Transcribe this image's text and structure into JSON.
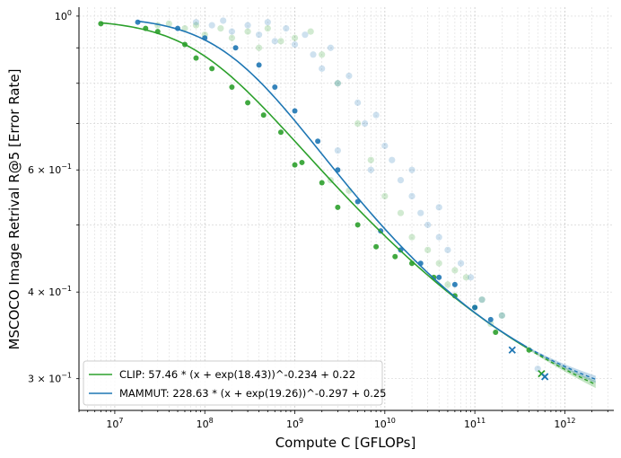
{
  "chart_data": {
    "type": "scatter",
    "xlabel": "Compute C [GFLOPs]",
    "ylabel": "MSCOCO Image Retrival R@5 [Error Rate]",
    "xscale": "log",
    "yscale": "log",
    "xlim": [
      4000000.0,
      3500000000000.0
    ],
    "ylim": [
      0.27,
      1.03
    ],
    "grid": true,
    "legend_position": "lower-left",
    "x_ticks": [
      {
        "value": 10000000.0,
        "base": "10",
        "exp": "7"
      },
      {
        "value": 100000000.0,
        "base": "10",
        "exp": "8"
      },
      {
        "value": 1000000000.0,
        "base": "10",
        "exp": "9"
      },
      {
        "value": 10000000000.0,
        "base": "10",
        "exp": "10"
      },
      {
        "value": 100000000000.0,
        "base": "10",
        "exp": "11"
      },
      {
        "value": 1000000000000.0,
        "base": "10",
        "exp": "12"
      }
    ],
    "y_ticks": [
      {
        "value": 1.0,
        "base": "10",
        "exp": "0"
      },
      {
        "value": 0.6,
        "base": "6 × 10",
        "exp": "−1"
      },
      {
        "value": 0.4,
        "base": "4 × 10",
        "exp": "−1"
      },
      {
        "value": 0.3,
        "base": "3 × 10",
        "exp": "−1"
      }
    ],
    "series": [
      {
        "name": "CLIP",
        "legend_label": "CLIP: 57.46 * (x + exp(18.43))^-0.234 + 0.22",
        "color": "#2ca02c",
        "fit": {
          "A": 57.46,
          "B": 18.43,
          "alpha": 0.234,
          "E": 0.22
        },
        "frontier_points": [
          {
            "x": 7000000.0,
            "y": 0.975
          },
          {
            "x": 22000000.0,
            "y": 0.96
          },
          {
            "x": 30000000.0,
            "y": 0.95
          },
          {
            "x": 60000000.0,
            "y": 0.91
          },
          {
            "x": 80000000.0,
            "y": 0.87
          },
          {
            "x": 120000000.0,
            "y": 0.84
          },
          {
            "x": 200000000.0,
            "y": 0.79
          },
          {
            "x": 300000000.0,
            "y": 0.75
          },
          {
            "x": 450000000.0,
            "y": 0.72
          },
          {
            "x": 700000000.0,
            "y": 0.68
          },
          {
            "x": 1000000000.0,
            "y": 0.61
          },
          {
            "x": 1200000000.0,
            "y": 0.615
          },
          {
            "x": 2000000000.0,
            "y": 0.575
          },
          {
            "x": 3000000000.0,
            "y": 0.53
          },
          {
            "x": 5000000000.0,
            "y": 0.5
          },
          {
            "x": 8000000000.0,
            "y": 0.465
          },
          {
            "x": 13000000000.0,
            "y": 0.45
          },
          {
            "x": 20000000000.0,
            "y": 0.44
          },
          {
            "x": 35000000000.0,
            "y": 0.42
          },
          {
            "x": 60000000000.0,
            "y": 0.395
          },
          {
            "x": 100000000000.0,
            "y": 0.38
          },
          {
            "x": 170000000000.0,
            "y": 0.35
          },
          {
            "x": 400000000000.0,
            "y": 0.33
          }
        ],
        "other_points": [
          {
            "x": 30000000.0,
            "y": 0.97
          },
          {
            "x": 40000000.0,
            "y": 0.975
          },
          {
            "x": 60000000.0,
            "y": 0.96
          },
          {
            "x": 80000000.0,
            "y": 0.97
          },
          {
            "x": 100000000.0,
            "y": 0.94
          },
          {
            "x": 150000000.0,
            "y": 0.96
          },
          {
            "x": 200000000.0,
            "y": 0.93
          },
          {
            "x": 300000000.0,
            "y": 0.95
          },
          {
            "x": 400000000.0,
            "y": 0.9
          },
          {
            "x": 500000000.0,
            "y": 0.96
          },
          {
            "x": 700000000.0,
            "y": 0.92
          },
          {
            "x": 1000000000.0,
            "y": 0.93
          },
          {
            "x": 1500000000.0,
            "y": 0.95
          },
          {
            "x": 2000000000.0,
            "y": 0.88
          },
          {
            "x": 3000000000.0,
            "y": 0.8
          },
          {
            "x": 5000000000.0,
            "y": 0.7
          },
          {
            "x": 7000000000.0,
            "y": 0.62
          },
          {
            "x": 10000000000.0,
            "y": 0.55
          },
          {
            "x": 15000000000.0,
            "y": 0.52
          },
          {
            "x": 20000000000.0,
            "y": 0.48
          },
          {
            "x": 30000000000.0,
            "y": 0.46
          },
          {
            "x": 40000000000.0,
            "y": 0.44
          },
          {
            "x": 60000000000.0,
            "y": 0.43
          },
          {
            "x": 80000000000.0,
            "y": 0.42
          },
          {
            "x": 120000000000.0,
            "y": 0.39
          },
          {
            "x": 200000000000.0,
            "y": 0.37
          },
          {
            "x": 2500000000.0,
            "y": 0.58
          },
          {
            "x": 4000000000.0,
            "y": 0.56
          },
          {
            "x": 150000000000.0,
            "y": 0.36
          },
          {
            "x": 50000000000.0,
            "y": 0.41
          }
        ],
        "test_points": [
          {
            "x": 550000000000.0,
            "y": 0.305
          }
        ]
      },
      {
        "name": "MAMMUT",
        "legend_label": "MAMMUT: 228.63 * (x + exp(19.26))^-0.297 + 0.25",
        "color": "#1f77b4",
        "fit": {
          "A": 228.63,
          "B": 19.26,
          "alpha": 0.297,
          "E": 0.25
        },
        "frontier_points": [
          {
            "x": 18000000.0,
            "y": 0.98
          },
          {
            "x": 50000000.0,
            "y": 0.96
          },
          {
            "x": 100000000.0,
            "y": 0.93
          },
          {
            "x": 220000000.0,
            "y": 0.9
          },
          {
            "x": 400000000.0,
            "y": 0.85
          },
          {
            "x": 600000000.0,
            "y": 0.79
          },
          {
            "x": 1000000000.0,
            "y": 0.73
          },
          {
            "x": 1800000000.0,
            "y": 0.66
          },
          {
            "x": 3000000000.0,
            "y": 0.6
          },
          {
            "x": 5000000000.0,
            "y": 0.54
          },
          {
            "x": 9000000000.0,
            "y": 0.49
          },
          {
            "x": 15000000000.0,
            "y": 0.46
          },
          {
            "x": 25000000000.0,
            "y": 0.44
          },
          {
            "x": 40000000000.0,
            "y": 0.42
          },
          {
            "x": 60000000000.0,
            "y": 0.41
          },
          {
            "x": 100000000000.0,
            "y": 0.38
          },
          {
            "x": 150000000000.0,
            "y": 0.365
          }
        ],
        "other_points": [
          {
            "x": 80000000.0,
            "y": 0.98
          },
          {
            "x": 120000000.0,
            "y": 0.97
          },
          {
            "x": 160000000.0,
            "y": 0.985
          },
          {
            "x": 200000000.0,
            "y": 0.95
          },
          {
            "x": 300000000.0,
            "y": 0.97
          },
          {
            "x": 400000000.0,
            "y": 0.94
          },
          {
            "x": 500000000.0,
            "y": 0.98
          },
          {
            "x": 600000000.0,
            "y": 0.92
          },
          {
            "x": 800000000.0,
            "y": 0.96
          },
          {
            "x": 1000000000.0,
            "y": 0.91
          },
          {
            "x": 1300000000.0,
            "y": 0.94
          },
          {
            "x": 1600000000.0,
            "y": 0.88
          },
          {
            "x": 2000000000.0,
            "y": 0.84
          },
          {
            "x": 2500000000.0,
            "y": 0.9
          },
          {
            "x": 3000000000.0,
            "y": 0.8
          },
          {
            "x": 4000000000.0,
            "y": 0.82
          },
          {
            "x": 5000000000.0,
            "y": 0.75
          },
          {
            "x": 6000000000.0,
            "y": 0.7
          },
          {
            "x": 8000000000.0,
            "y": 0.72
          },
          {
            "x": 10000000000.0,
            "y": 0.65
          },
          {
            "x": 12000000000.0,
            "y": 0.62
          },
          {
            "x": 15000000000.0,
            "y": 0.58
          },
          {
            "x": 20000000000.0,
            "y": 0.55
          },
          {
            "x": 25000000000.0,
            "y": 0.52
          },
          {
            "x": 30000000000.0,
            "y": 0.5
          },
          {
            "x": 40000000000.0,
            "y": 0.48
          },
          {
            "x": 50000000000.0,
            "y": 0.46
          },
          {
            "x": 70000000000.0,
            "y": 0.44
          },
          {
            "x": 90000000000.0,
            "y": 0.42
          },
          {
            "x": 120000000000.0,
            "y": 0.39
          },
          {
            "x": 200000000000.0,
            "y": 0.37
          },
          {
            "x": 500000000000.0,
            "y": 0.31
          },
          {
            "x": 40000000000.0,
            "y": 0.53
          },
          {
            "x": 20000000000.0,
            "y": 0.6
          },
          {
            "x": 7000000000.0,
            "y": 0.6
          },
          {
            "x": 3000000000.0,
            "y": 0.64
          }
        ],
        "test_points": [
          {
            "x": 260000000000.0,
            "y": 0.33
          },
          {
            "x": 600000000000.0,
            "y": 0.302
          }
        ]
      }
    ]
  }
}
